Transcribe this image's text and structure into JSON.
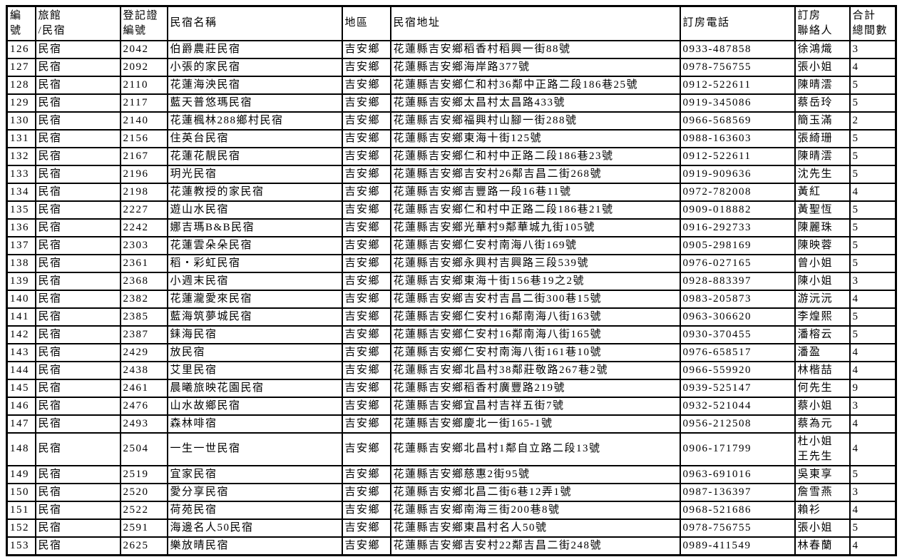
{
  "table": {
    "headers": [
      "編\n號",
      "旅館\n/民宿",
      "登記證\n編號",
      "民宿名稱",
      "地區",
      "民宿地址",
      "訂房電話",
      "訂房\n聯絡人",
      "合計\n總間數"
    ],
    "column_keys": [
      "no",
      "type",
      "reg",
      "name",
      "region",
      "address",
      "phone",
      "contact",
      "rooms"
    ],
    "rows": [
      {
        "no": "126",
        "type": "民宿",
        "reg": "2042",
        "name": "伯爵農莊民宿",
        "region": "吉安鄉",
        "address": "花蓮縣吉安鄉稻香村稻興一街88號",
        "phone": "0933-487858",
        "contact": "徐鴻熾",
        "rooms": "3"
      },
      {
        "no": "127",
        "type": "民宿",
        "reg": "2092",
        "name": "小張的家民宿",
        "region": "吉安鄉",
        "address": "花蓮縣吉安鄉海岸路377號",
        "phone": "0978-756755",
        "contact": "張小姐",
        "rooms": "4"
      },
      {
        "no": "128",
        "type": "民宿",
        "reg": "2110",
        "name": "花蓮海泱民宿",
        "region": "吉安鄉",
        "address": "花蓮縣吉安鄉仁和村36鄰中正路二段186巷25號",
        "phone": "0912-522611",
        "contact": "陳晴澐",
        "rooms": "5"
      },
      {
        "no": "129",
        "type": "民宿",
        "reg": "2117",
        "name": "藍天普悠瑪民宿",
        "region": "吉安鄉",
        "address": "花蓮縣吉安鄉太昌村太昌路433號",
        "phone": "0919-345086",
        "contact": "蔡岳玲",
        "rooms": "5"
      },
      {
        "no": "130",
        "type": "民宿",
        "reg": "2140",
        "name": "花蓮楓林288鄉村民宿",
        "region": "吉安鄉",
        "address": "花蓮縣吉安鄉福興村山腳一街288號",
        "phone": "0966-568569",
        "contact": "簡玉滿",
        "rooms": "2"
      },
      {
        "no": "131",
        "type": "民宿",
        "reg": "2156",
        "name": "住英台民宿",
        "region": "吉安鄉",
        "address": "花蓮縣吉安鄉東海十街125號",
        "phone": "0988-163603",
        "contact": "張綺珊",
        "rooms": "5"
      },
      {
        "no": "132",
        "type": "民宿",
        "reg": "2167",
        "name": "花蓮花靚民宿",
        "region": "吉安鄉",
        "address": "花蓮縣吉安鄉仁和村中正路二段186巷23號",
        "phone": "0912-522611",
        "contact": "陳晴澐",
        "rooms": "5"
      },
      {
        "no": "133",
        "type": "民宿",
        "reg": "2196",
        "name": "玥光民宿",
        "region": "吉安鄉",
        "address": "花蓮縣吉安鄉吉安村26鄰吉昌二街268號",
        "phone": "0919-909636",
        "contact": "沈先生",
        "rooms": "5"
      },
      {
        "no": "134",
        "type": "民宿",
        "reg": "2198",
        "name": "花蓮教授的家民宿",
        "region": "吉安鄉",
        "address": "花蓮縣吉安鄉吉豐路一段16巷11號",
        "phone": "0972-782008",
        "contact": "黃紅",
        "rooms": "4"
      },
      {
        "no": "135",
        "type": "民宿",
        "reg": "2227",
        "name": "遊山水民宿",
        "region": "吉安鄉",
        "address": "花蓮縣吉安鄉仁和村中正路二段186巷21號",
        "phone": "0909-018882",
        "contact": "黃聖恆",
        "rooms": "5"
      },
      {
        "no": "136",
        "type": "民宿",
        "reg": "2242",
        "name": "娜吉瑪B&B民宿",
        "region": "吉安鄉",
        "address": "花蓮縣吉安鄉光華村9鄰華城九街105號",
        "phone": "0916-292733",
        "contact": "陳麗珠",
        "rooms": "5"
      },
      {
        "no": "137",
        "type": "民宿",
        "reg": "2303",
        "name": "花蓮雲朵朵民宿",
        "region": "吉安鄉",
        "address": "花蓮縣吉安鄉仁安村南海八街169號",
        "phone": "0905-298169",
        "contact": "陳映蓉",
        "rooms": "5"
      },
      {
        "no": "138",
        "type": "民宿",
        "reg": "2361",
        "name": "稻・彩虹民宿",
        "region": "吉安鄉",
        "address": "花蓮縣吉安鄉永興村吉興路三段539號",
        "phone": "0976-027165",
        "contact": "曾小姐",
        "rooms": "5"
      },
      {
        "no": "139",
        "type": "民宿",
        "reg": "2368",
        "name": "小週末民宿",
        "region": "吉安鄉",
        "address": "花蓮縣吉安鄉東海十街156巷19之2號",
        "phone": "0928-883397",
        "contact": "陳小姐",
        "rooms": "3"
      },
      {
        "no": "140",
        "type": "民宿",
        "reg": "2382",
        "name": "花蓮瀧愛來民宿",
        "region": "吉安鄉",
        "address": "花蓮縣吉安鄉吉安村吉昌二街300巷15號",
        "phone": "0983-205873",
        "contact": "游沅沅",
        "rooms": "4"
      },
      {
        "no": "141",
        "type": "民宿",
        "reg": "2385",
        "name": "藍海筑夢城民宿",
        "region": "吉安鄉",
        "address": "花蓮縣吉安鄉仁安村16鄰南海八街163號",
        "phone": "0963-306620",
        "contact": "李煌熙",
        "rooms": "5"
      },
      {
        "no": "142",
        "type": "民宿",
        "reg": "2387",
        "name": "銇海民宿",
        "region": "吉安鄉",
        "address": "花蓮縣吉安鄉仁安村16鄰南海八街165號",
        "phone": "0930-370455",
        "contact": "潘榕云",
        "rooms": "5"
      },
      {
        "no": "143",
        "type": "民宿",
        "reg": "2429",
        "name": "放民宿",
        "region": "吉安鄉",
        "address": "花蓮縣吉安鄉仁安村南海八街161巷10號",
        "phone": "0976-658517",
        "contact": "潘盈",
        "rooms": "4"
      },
      {
        "no": "144",
        "type": "民宿",
        "reg": "2438",
        "name": "艾里民宿",
        "region": "吉安鄉",
        "address": "花蓮縣吉安鄉北昌村38鄰莊敬路267巷2號",
        "phone": "0966-559920",
        "contact": "林楷喆",
        "rooms": "4"
      },
      {
        "no": "145",
        "type": "民宿",
        "reg": "2461",
        "name": "晨曦旅映花園民宿",
        "region": "吉安鄉",
        "address": "花蓮縣吉安鄉稻香村廣豐路219號",
        "phone": "0939-525147",
        "contact": "何先生",
        "rooms": "9"
      },
      {
        "no": "146",
        "type": "民宿",
        "reg": "2476",
        "name": "山水故鄉民宿",
        "region": "吉安鄉",
        "address": "花蓮縣吉安鄉宜昌村吉祥五街7號",
        "phone": "0932-521044",
        "contact": "蔡小姐",
        "rooms": "3"
      },
      {
        "no": "147",
        "type": "民宿",
        "reg": "2493",
        "name": "森林啡宿",
        "region": "吉安鄉",
        "address": "花蓮縣吉安鄉慶北一街165-1號",
        "phone": "0956-212508",
        "contact": "蔡為元",
        "rooms": "4"
      },
      {
        "no": "148",
        "type": "民宿",
        "reg": "2504",
        "name": "一生一世民宿",
        "region": "吉安鄉",
        "address": "花蓮縣吉安鄉北昌村1鄰自立路二段13號",
        "phone": "0906-171799",
        "contact": "杜小姐\n王先生",
        "rooms": "4"
      },
      {
        "no": "149",
        "type": "民宿",
        "reg": "2519",
        "name": "宜家民宿",
        "region": "吉安鄉",
        "address": "花蓮縣吉安鄉慈惠2街95號",
        "phone": "0963-691016",
        "contact": "吳東享",
        "rooms": "5"
      },
      {
        "no": "150",
        "type": "民宿",
        "reg": "2520",
        "name": "愛分享民宿",
        "region": "吉安鄉",
        "address": "花蓮縣吉安鄉北昌二街6巷12弄1號",
        "phone": "0987-136397",
        "contact": "詹雪燕",
        "rooms": "3"
      },
      {
        "no": "151",
        "type": "民宿",
        "reg": "2522",
        "name": "荷苑民宿",
        "region": "吉安鄉",
        "address": "花蓮縣吉安鄉南海三街200巷8號",
        "phone": "0968-521686",
        "contact": "賴衫",
        "rooms": "4"
      },
      {
        "no": "152",
        "type": "民宿",
        "reg": "2591",
        "name": "海邊名人50民宿",
        "region": "吉安鄉",
        "address": "花蓮縣吉安鄉東昌村名人50號",
        "phone": "0978-756755",
        "contact": "張小姐",
        "rooms": "5"
      },
      {
        "no": "153",
        "type": "民宿",
        "reg": "2625",
        "name": "樂放晴民宿",
        "region": "吉安鄉",
        "address": "花蓮縣吉安鄉吉安村22鄰吉昌二街248號",
        "phone": "0989-411549",
        "contact": "林春蘭",
        "rooms": "4"
      }
    ]
  }
}
